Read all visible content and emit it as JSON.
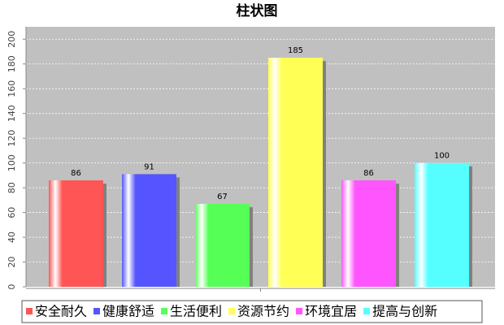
{
  "chart_data": {
    "type": "bar",
    "title": "柱状图",
    "categories": [
      null
    ],
    "series": [
      {
        "name": "安全耐久",
        "color": "#ff5555",
        "values": [
          86
        ]
      },
      {
        "name": "健康舒适",
        "color": "#5555ff",
        "values": [
          91
        ]
      },
      {
        "name": "生活便利",
        "color": "#55ff55",
        "values": [
          67
        ]
      },
      {
        "name": "资源节约",
        "color": "#ffff55",
        "values": [
          185
        ]
      },
      {
        "name": "环境宜居",
        "color": "#ff55ff",
        "values": [
          86
        ]
      },
      {
        "name": "提高与创新",
        "color": "#55ffff",
        "values": [
          100
        ]
      }
    ],
    "ylim": [
      0,
      210
    ],
    "yticks": [
      0,
      20,
      40,
      60,
      80,
      100,
      120,
      140,
      160,
      180,
      200
    ],
    "grid": true,
    "legend": "bottom"
  }
}
